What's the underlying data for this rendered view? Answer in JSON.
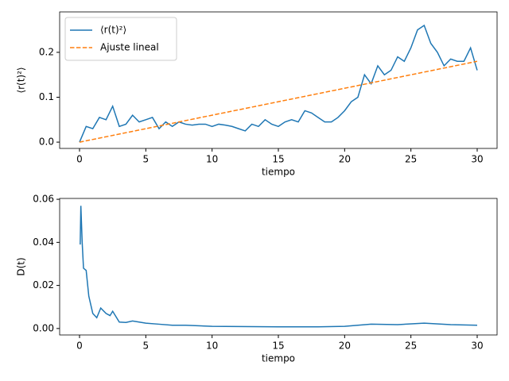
{
  "chart_data": [
    {
      "type": "line",
      "xlabel": "tiempo",
      "ylabel": "⟨r(t)²⟩",
      "legend": "upper left",
      "xlim": [
        -1.5,
        31.5
      ],
      "ylim": [
        -0.014,
        0.29
      ],
      "xticks": [
        0,
        5,
        10,
        15,
        20,
        25,
        30
      ],
      "yticks": [
        {
          "value": 0,
          "label": "0.0"
        },
        {
          "value": 0.1,
          "label": "0.1"
        },
        {
          "value": 0.2,
          "label": "0.2"
        }
      ],
      "series": [
        {
          "name": "⟨r(t)²⟩",
          "color": "#1f77b4",
          "style": "solid",
          "x": [
            0,
            0.5,
            1,
            1.5,
            2,
            2.5,
            3,
            3.5,
            4,
            4.5,
            5,
            5.5,
            6,
            6.5,
            7,
            7.5,
            8,
            8.5,
            9,
            9.5,
            10,
            10.5,
            11,
            11.5,
            12,
            12.5,
            13,
            13.5,
            14,
            14.5,
            15,
            15.5,
            16,
            16.5,
            17,
            17.5,
            18,
            18.5,
            19,
            19.5,
            20,
            20.5,
            21,
            21.5,
            22,
            22.5,
            23,
            23.5,
            24,
            24.5,
            25,
            25.5,
            26,
            26.5,
            27,
            27.5,
            28,
            28.5,
            29,
            29.5,
            30
          ],
          "values": [
            0,
            0.035,
            0.03,
            0.055,
            0.05,
            0.08,
            0.035,
            0.04,
            0.06,
            0.045,
            0.05,
            0.055,
            0.03,
            0.045,
            0.035,
            0.045,
            0.04,
            0.038,
            0.04,
            0.04,
            0.035,
            0.04,
            0.038,
            0.035,
            0.03,
            0.025,
            0.04,
            0.035,
            0.05,
            0.04,
            0.035,
            0.045,
            0.05,
            0.045,
            0.07,
            0.065,
            0.055,
            0.045,
            0.045,
            0.055,
            0.07,
            0.09,
            0.1,
            0.15,
            0.13,
            0.17,
            0.15,
            0.16,
            0.19,
            0.18,
            0.21,
            0.25,
            0.26,
            0.22,
            0.2,
            0.17,
            0.185,
            0.18,
            0.18,
            0.21,
            0.16
          ]
        },
        {
          "name": "Ajuste lineal",
          "color": "#ff7f0e",
          "style": "dashed",
          "x": [
            0,
            30
          ],
          "values": [
            0,
            0.18
          ]
        }
      ]
    },
    {
      "type": "line",
      "xlabel": "tiempo",
      "ylabel": "D(t)",
      "xlim": [
        -1.5,
        31.5
      ],
      "ylim": [
        -0.003,
        0.0604
      ],
      "xticks": [
        0,
        5,
        10,
        15,
        20,
        25,
        30
      ],
      "yticks": [
        {
          "value": 0,
          "label": "0.00"
        },
        {
          "value": 0.02,
          "label": "0.02"
        },
        {
          "value": 0.04,
          "label": "0.04"
        },
        {
          "value": 0.06,
          "label": "0.06"
        }
      ],
      "series": [
        {
          "color": "#1f77b4",
          "style": "solid",
          "x": [
            0.05,
            0.1,
            0.2,
            0.3,
            0.5,
            0.7,
            1,
            1.3,
            1.6,
            2,
            2.3,
            2.5,
            3,
            3.5,
            4,
            4.5,
            5,
            6,
            7,
            8,
            10,
            12,
            15,
            18,
            20,
            22,
            24,
            26,
            28,
            30
          ],
          "values": [
            0.039,
            0.057,
            0.04,
            0.028,
            0.027,
            0.015,
            0.007,
            0.005,
            0.0095,
            0.007,
            0.006,
            0.008,
            0.003,
            0.0028,
            0.0035,
            0.003,
            0.0025,
            0.002,
            0.0015,
            0.0015,
            0.001,
            0.0009,
            0.0008,
            0.0008,
            0.001,
            0.002,
            0.0018,
            0.0025,
            0.0018,
            0.0015
          ]
        }
      ]
    }
  ]
}
